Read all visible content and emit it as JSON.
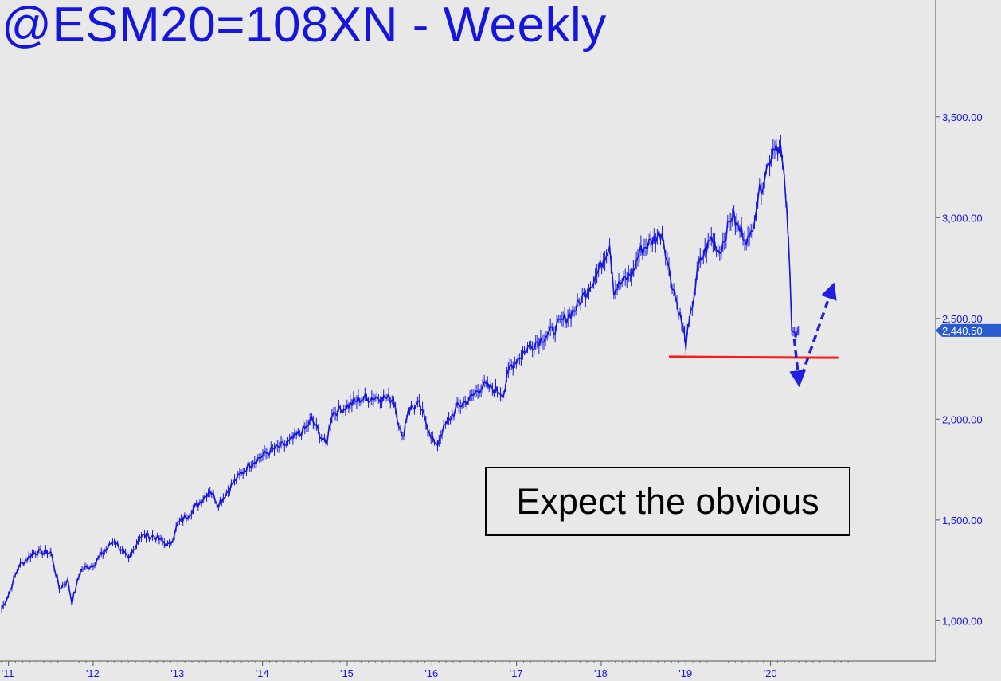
{
  "chart_data": {
    "type": "line",
    "title": "@ESM20=108XN - Weekly",
    "xlabel": "",
    "ylabel": "",
    "x_tick_labels": [
      "'11",
      "'12",
      "'13",
      "'14",
      "'15",
      "'16",
      "'17",
      "'18",
      "'19",
      "'20"
    ],
    "y_ticks": [
      1000,
      1500,
      2000,
      2500,
      3000,
      3500
    ],
    "y_tick_labels": [
      "1,000.00",
      "1,500.00",
      "2,000.00",
      "2,500.00",
      "3,000.00",
      "3,500.00"
    ],
    "xlim": [
      2010.9,
      2021.95
    ],
    "ylim": [
      800,
      4080
    ],
    "last_price_label": "2,440.50",
    "last_price": 2440.5,
    "series": [
      {
        "color": "#1515e0",
        "x": [
          2010.92,
          2011.0,
          2011.12,
          2011.3,
          2011.5,
          2011.6,
          2011.7,
          2011.75,
          2011.85,
          2012.0,
          2012.25,
          2012.42,
          2012.55,
          2012.72,
          2012.9,
          2013.0,
          2013.2,
          2013.38,
          2013.48,
          2013.65,
          2013.85,
          2014.08,
          2014.3,
          2014.52,
          2014.58,
          2014.75,
          2014.82,
          2014.98,
          2015.15,
          2015.35,
          2015.55,
          2015.65,
          2015.72,
          2015.85,
          2016.05,
          2016.12,
          2016.3,
          2016.45,
          2016.6,
          2016.85,
          2016.92,
          2017.15,
          2017.4,
          2017.7,
          2017.95,
          2018.1,
          2018.15,
          2018.38,
          2018.45,
          2018.72,
          2018.8,
          2018.95,
          2019.0,
          2019.15,
          2019.3,
          2019.4,
          2019.55,
          2019.6,
          2019.75,
          2019.85,
          2020.05,
          2020.12,
          2020.18,
          2020.2,
          2020.23,
          2020.25,
          2020.3,
          2020.33
        ],
        "y": [
          1060,
          1130,
          1270,
          1340,
          1340,
          1160,
          1200,
          1090,
          1250,
          1280,
          1400,
          1300,
          1420,
          1420,
          1370,
          1480,
          1560,
          1650,
          1580,
          1680,
          1780,
          1840,
          1880,
          1960,
          2000,
          1870,
          2030,
          2060,
          2100,
          2110,
          2100,
          1900,
          2050,
          2070,
          1860,
          1940,
          2060,
          2100,
          2170,
          2130,
          2260,
          2360,
          2430,
          2550,
          2720,
          2870,
          2640,
          2730,
          2830,
          2930,
          2740,
          2480,
          2370,
          2760,
          2900,
          2830,
          3020,
          2960,
          2880,
          3100,
          3370,
          3340,
          3100,
          2950,
          2730,
          2450,
          2400,
          2440
        ]
      }
    ],
    "support_line": {
      "x": [
        2018.8,
        2020.8
      ],
      "y": [
        2310,
        2305
      ],
      "color": "#ff1a1a"
    },
    "projection": {
      "x": [
        2020.28,
        2020.33,
        2020.72
      ],
      "y": [
        2400,
        2200,
        2640
      ],
      "color": "#2020e0",
      "style": "dashed"
    },
    "annotation": "Expect the obvious"
  }
}
